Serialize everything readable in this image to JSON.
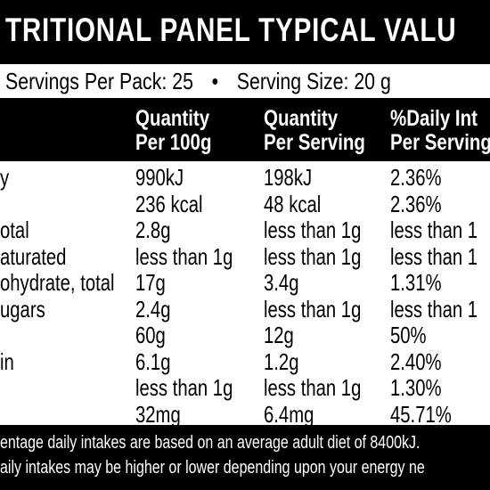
{
  "title": "TRITIONAL PANEL TYPICAL VALU",
  "servings": {
    "per_pack": "Servings Per Pack: 25",
    "bullet": "•",
    "size": "Serving Size: 20 g"
  },
  "headers": {
    "col1": [
      "Quantity",
      "Per 100g"
    ],
    "col2": [
      "Quantity",
      "Per Serving"
    ],
    "col3": [
      "%Daily Int",
      "Per Serving"
    ]
  },
  "rows": [
    {
      "name": "y",
      "per100": "990kJ",
      "perserv": "198kJ",
      "daily": "2.36%"
    },
    {
      "name": "",
      "per100": "236 kcal",
      "perserv": "48 kcal",
      "daily": "2.36%"
    },
    {
      "name": "otal",
      "per100": "2.8g",
      "perserv": "less than 1g",
      "daily": "less than 1"
    },
    {
      "name": "aturated",
      "per100": "less than 1g",
      "perserv": "less than 1g",
      "daily": "less than 1"
    },
    {
      "name": "ohydrate, total",
      "per100": "17g",
      "perserv": "3.4g",
      "daily": "1.31%"
    },
    {
      "name": "ugars",
      "per100": "2.4g",
      "perserv": "less than 1g",
      "daily": "less than 1"
    },
    {
      "name": "",
      "per100": "60g",
      "perserv": "12g",
      "daily": "50%"
    },
    {
      "name": "in",
      "per100": "6.1g",
      "perserv": "1.2g",
      "daily": "2.40%"
    },
    {
      "name": "",
      "per100": "less than 1g",
      "perserv": "less than 1g",
      "daily": "1.30%"
    },
    {
      "name": "",
      "per100": "32mg",
      "perserv": "6.4mg",
      "daily": "45.71%"
    }
  ],
  "footnotes": [
    "entage daily intakes are based on an average adult diet of 8400kJ.",
    "aily intakes may be higher or lower depending upon your energy ne"
  ]
}
